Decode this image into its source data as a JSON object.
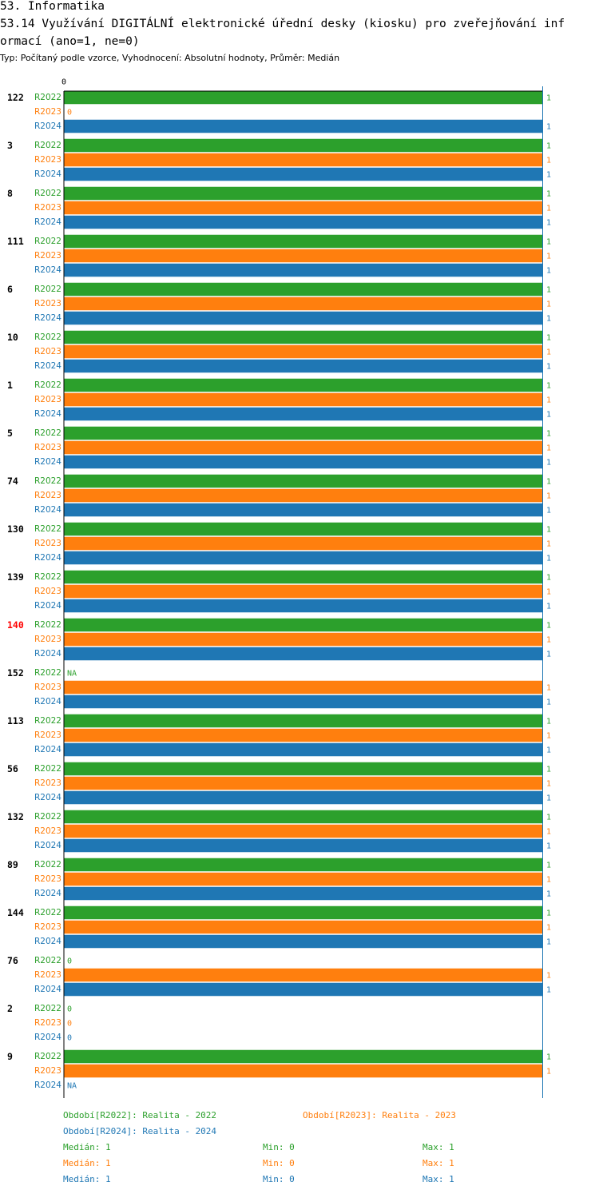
{
  "header": {
    "section": "53. Informatika",
    "question_line1": "53.14 Využívání DIGITÁLNÍ elektronické úřední desky (kiosku) pro zveřejňování inf",
    "question_line2": "ormací (ano=1, ne=0)",
    "subtitle": "Typ: Počítaný podle vzorce, Vyhodnocení: Absolutní hodnoty, Průměr: Medián"
  },
  "colors": {
    "R2022": "#2ca02c",
    "R2023": "#ff7f0e",
    "R2024": "#1f77b4",
    "highlight": "#ff0000"
  },
  "chart_data": {
    "type": "bar",
    "orientation": "horizontal",
    "axis_tick": "0",
    "xlim": [
      0,
      1
    ],
    "series_names": [
      "R2022",
      "R2023",
      "R2024"
    ],
    "highlight_group": "140",
    "groups": [
      {
        "label": "122",
        "values": [
          1,
          0,
          1
        ]
      },
      {
        "label": "3",
        "values": [
          1,
          1,
          1
        ]
      },
      {
        "label": "8",
        "values": [
          1,
          1,
          1
        ]
      },
      {
        "label": "111",
        "values": [
          1,
          1,
          1
        ]
      },
      {
        "label": "6",
        "values": [
          1,
          1,
          1
        ]
      },
      {
        "label": "10",
        "values": [
          1,
          1,
          1
        ]
      },
      {
        "label": "1",
        "values": [
          1,
          1,
          1
        ]
      },
      {
        "label": "5",
        "values": [
          1,
          1,
          1
        ]
      },
      {
        "label": "74",
        "values": [
          1,
          1,
          1
        ]
      },
      {
        "label": "130",
        "values": [
          1,
          1,
          1
        ]
      },
      {
        "label": "139",
        "values": [
          1,
          1,
          1
        ]
      },
      {
        "label": "140",
        "values": [
          1,
          1,
          1
        ]
      },
      {
        "label": "152",
        "values": [
          "NA",
          1,
          1
        ]
      },
      {
        "label": "113",
        "values": [
          1,
          1,
          1
        ]
      },
      {
        "label": "56",
        "values": [
          1,
          1,
          1
        ]
      },
      {
        "label": "132",
        "values": [
          1,
          1,
          1
        ]
      },
      {
        "label": "89",
        "values": [
          1,
          1,
          1
        ]
      },
      {
        "label": "144",
        "values": [
          1,
          1,
          1
        ]
      },
      {
        "label": "76",
        "values": [
          0,
          1,
          1
        ]
      },
      {
        "label": "2",
        "values": [
          0,
          0,
          0
        ]
      },
      {
        "label": "9",
        "values": [
          1,
          1,
          "NA"
        ]
      }
    ]
  },
  "legend": {
    "periods": [
      {
        "text": "Období[R2022]: Realita - 2022"
      },
      {
        "text": "Období[R2023]: Realita - 2023"
      },
      {
        "text": "Období[R2024]: Realita - 2024"
      }
    ],
    "stats": [
      {
        "median": "Medián: 1",
        "min": "Min: 0",
        "max": "Max: 1"
      },
      {
        "median": "Medián: 1",
        "min": "Min: 0",
        "max": "Max: 1"
      },
      {
        "median": "Medián: 1",
        "min": "Min: 0",
        "max": "Max: 1"
      }
    ]
  }
}
